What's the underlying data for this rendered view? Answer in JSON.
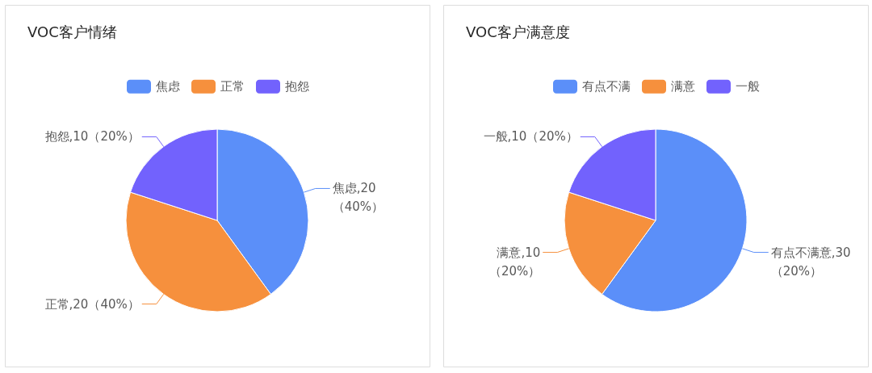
{
  "chart_data": [
    {
      "type": "pie",
      "title": "VOC客户情绪",
      "categories": [
        "焦虑",
        "正常",
        "抱怨"
      ],
      "values": [
        20,
        20,
        10
      ],
      "colors": [
        "#5b8ff9",
        "#f6903d",
        "#7262fd"
      ],
      "value_labels": [
        "焦虑,20\n（40%）",
        "正常,20（40%）",
        "抱怨,10（20%）"
      ],
      "legend": "top"
    },
    {
      "type": "pie",
      "title": "VOC客户满意度",
      "categories": [
        "有点不满",
        "满意",
        "一般"
      ],
      "values": [
        30,
        10,
        10
      ],
      "colors": [
        "#5b8ff9",
        "#f6903d",
        "#7262fd"
      ],
      "value_labels": [
        "有点不满意,30\n（20%）",
        "满意,10\n（20%）",
        "一般,10（20%）"
      ],
      "legend": "top"
    }
  ]
}
